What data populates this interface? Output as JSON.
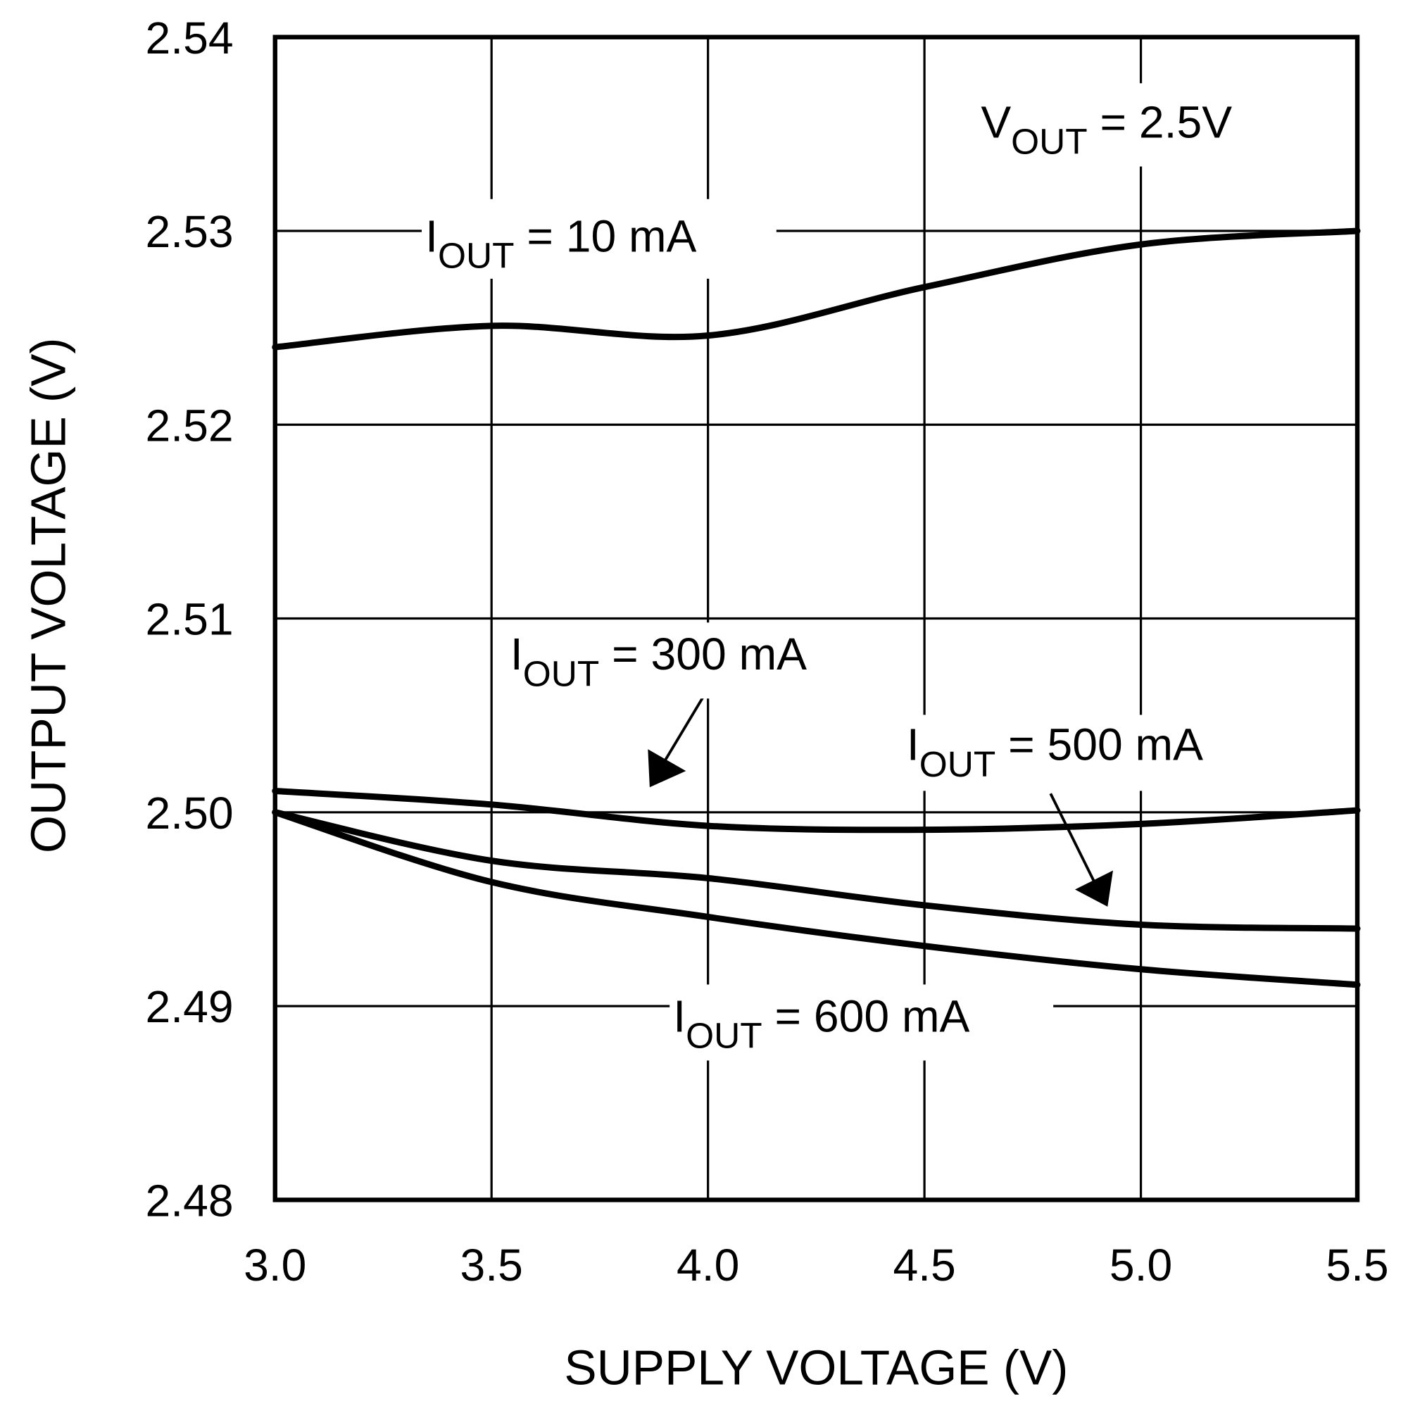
{
  "chart_data": {
    "type": "line",
    "title": "",
    "xlabel": "SUPPLY VOLTAGE (V)",
    "ylabel": "OUTPUT VOLTAGE (V)",
    "xlim": [
      3.0,
      5.5
    ],
    "ylim": [
      2.48,
      2.54
    ],
    "grid": true,
    "xticks": [
      "3.0",
      "3.5",
      "4.0",
      "4.5",
      "5.0",
      "5.5"
    ],
    "yticks": [
      "2.54",
      "2.53",
      "2.52",
      "2.51",
      "2.50",
      "2.49",
      "2.48"
    ],
    "x": [
      3.0,
      3.5,
      4.0,
      4.5,
      5.0,
      5.5
    ],
    "series": [
      {
        "name": "IOUT = 10 mA",
        "values": [
          2.524,
          2.5251,
          2.5246,
          2.5271,
          2.5293,
          2.53
        ]
      },
      {
        "name": "IOUT = 300 mA",
        "values": [
          2.5011,
          2.5004,
          2.4993,
          2.4991,
          2.4994,
          2.5001
        ]
      },
      {
        "name": "IOUT = 500 mA",
        "values": [
          2.5,
          2.4975,
          2.4966,
          2.4952,
          2.4942,
          2.494
        ]
      },
      {
        "name": "IOUT = 600 mA",
        "values": [
          2.5,
          2.4964,
          2.4946,
          2.4931,
          2.4919,
          2.4911
        ]
      }
    ],
    "annotations": {
      "vout": {
        "main": "V",
        "sub": "OUT",
        "rest": " = 2.5V"
      },
      "l10": {
        "main": "I",
        "sub": "OUT",
        "rest": " = 10 mA"
      },
      "l300": {
        "main": "I",
        "sub": "OUT",
        "rest": " = 300 mA"
      },
      "l500": {
        "main": "I",
        "sub": "OUT",
        "rest": " = 500 mA"
      },
      "l600": {
        "main": "I",
        "sub": "OUT",
        "rest": " = 600 mA"
      }
    }
  }
}
